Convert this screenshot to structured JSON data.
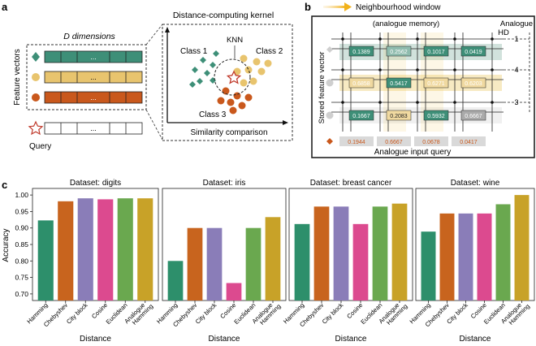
{
  "panel_a": {
    "label": "a",
    "dimensions_title": "D dimensions",
    "feature_vectors_label": "Feature vectors",
    "query_label": "Query",
    "ellipsis": "...",
    "kernel_title": "Distance-computing kernel",
    "knn_label": "KNN",
    "class1": "Class 1",
    "class2": "Class 2",
    "class3": "Class 3",
    "similarity_label": "Similarity comparison",
    "colors": {
      "class1": "#3e8f78",
      "class2": "#e8c46e",
      "class3": "#c9581c",
      "query": "#c0392b"
    }
  },
  "panel_b": {
    "label": "b",
    "neighbourhood_window": "Neighbourhood window",
    "analogue_memory": "(analogue memory)",
    "analogue_hd_line1": "Analogue",
    "analogue_hd_line2": "HD",
    "stored_vector_label": "Stored feature vector",
    "input_query_label": "Analogue input query",
    "row_labels": [
      "1",
      "4",
      "3"
    ],
    "stored_values": [
      [
        "0.1389",
        "0.2562",
        "0.1017",
        "0.0419"
      ],
      [
        "0.6858",
        "0.5417",
        "0.6271",
        "0.6203"
      ],
      [
        "0.1667",
        "0.2083",
        "0.5932",
        "0.6667"
      ]
    ],
    "query_values": [
      "0.1944",
      "0.6667",
      "0.0678",
      "0.0417"
    ]
  },
  "panel_c": {
    "label": "c",
    "ylabel": "Accuracy",
    "xlabel": "Distance"
  },
  "chart_data": [
    {
      "type": "bar",
      "title": "Dataset: digits",
      "categories": [
        "Hamming",
        "Chebyshev",
        "City block",
        "Cosine",
        "Euclidean",
        "Analogue Hamming"
      ],
      "values": [
        0.923,
        0.981,
        0.99,
        0.987,
        0.99,
        0.99
      ],
      "xlabel": "Distance",
      "ylabel": "Accuracy",
      "ylim": [
        0.68,
        1.02
      ],
      "yticks": [
        "0.70",
        "0.75",
        "0.80",
        "0.85",
        "0.90",
        "0.95",
        "1.00"
      ],
      "colors": [
        "#2d8f6b",
        "#c8641e",
        "#8a7db8",
        "#dc4a8f",
        "#6aa84f",
        "#c8a228"
      ]
    },
    {
      "type": "bar",
      "title": "Dataset: iris",
      "categories": [
        "Hamming",
        "Chebyshev",
        "City block",
        "Cosine",
        "Euclidean",
        "Analogue Hamming"
      ],
      "values": [
        0.8,
        0.9,
        0.9,
        0.733,
        0.9,
        0.933
      ],
      "xlabel": "Distance",
      "ylabel": "Accuracy",
      "ylim": [
        0.68,
        1.02
      ],
      "colors": [
        "#2d8f6b",
        "#c8641e",
        "#8a7db8",
        "#dc4a8f",
        "#6aa84f",
        "#c8a228"
      ]
    },
    {
      "type": "bar",
      "title": "Dataset: breast cancer",
      "categories": [
        "Hamming",
        "Chebyshev",
        "City block",
        "Cosine",
        "Euclidean",
        "Analogue Hamming"
      ],
      "values": [
        0.912,
        0.965,
        0.965,
        0.912,
        0.965,
        0.974
      ],
      "xlabel": "Distance",
      "ylabel": "Accuracy",
      "ylim": [
        0.68,
        1.02
      ],
      "colors": [
        "#2d8f6b",
        "#c8641e",
        "#8a7db8",
        "#dc4a8f",
        "#6aa84f",
        "#c8a228"
      ]
    },
    {
      "type": "bar",
      "title": "Dataset: wine",
      "categories": [
        "Hamming",
        "Chebyshev",
        "City block",
        "Cosine",
        "Euclidean",
        "Analogue Hamming"
      ],
      "values": [
        0.889,
        0.944,
        0.944,
        0.944,
        0.972,
        1.0
      ],
      "xlabel": "Distance",
      "ylabel": "Accuracy",
      "ylim": [
        0.68,
        1.02
      ],
      "colors": [
        "#2d8f6b",
        "#c8641e",
        "#8a7db8",
        "#dc4a8f",
        "#6aa84f",
        "#c8a228"
      ]
    }
  ]
}
